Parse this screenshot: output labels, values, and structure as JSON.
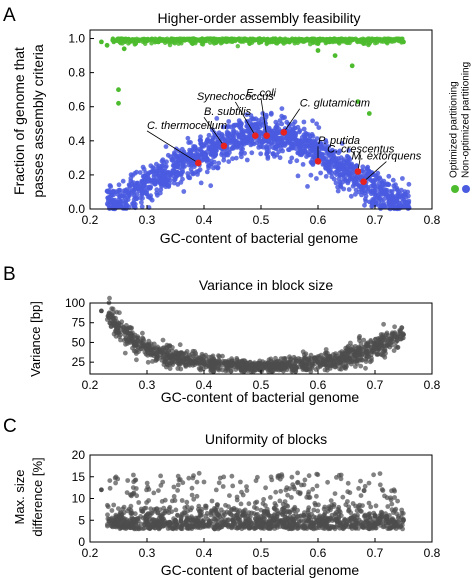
{
  "panels": [
    {
      "letter": "A"
    },
    {
      "letter": "B"
    },
    {
      "letter": "C"
    }
  ],
  "chart_data": [
    {
      "type": "scatter",
      "title": "Higher-order assembly feasibility",
      "xlabel": "GC-content of bacterial genome",
      "ylabel": [
        "Fraction of genome that",
        "passes assembly criteria"
      ],
      "xlim": [
        0.2,
        0.8
      ],
      "ylim": [
        0,
        1.05
      ],
      "xticks": [
        "0.2",
        "0.3",
        "0.4",
        "0.5",
        "0.6",
        "0.7",
        "0.8"
      ],
      "yticks": [
        "0.0",
        "0.2",
        "0.4",
        "0.6",
        "0.8",
        "1.0"
      ],
      "xtick_values": [
        0.2,
        0.3,
        0.4,
        0.5,
        0.6,
        0.7,
        0.8
      ],
      "ytick_values": [
        0,
        0.2,
        0.4,
        0.6,
        0.8,
        1.0
      ],
      "legend": {
        "placement": "right, vertical",
        "entries": [
          {
            "label": "Optimized partitioning",
            "color": "#4dbb2e"
          },
          {
            "label": "Non-optimized partitioning",
            "color": "#4a5be0"
          }
        ]
      },
      "series": [
        {
          "name": "Optimized partitioning",
          "color": "#4dbb2e",
          "description_range": "clustered near 1.0 across GC 0.21-0.75, few outliers down to ~0.55",
          "points": [
            [
              0.22,
              0.98
            ],
            [
              0.23,
              0.96
            ],
            [
              0.24,
              0.99
            ],
            [
              0.25,
              0.62
            ],
            [
              0.26,
              0.94
            ],
            [
              0.28,
              0.97
            ],
            [
              0.3,
              0.99
            ],
            [
              0.32,
              0.98
            ],
            [
              0.35,
              0.99
            ],
            [
              0.38,
              0.97
            ],
            [
              0.4,
              0.99
            ],
            [
              0.42,
              0.98
            ],
            [
              0.45,
              0.99
            ],
            [
              0.48,
              0.97
            ],
            [
              0.5,
              0.98
            ],
            [
              0.52,
              0.99
            ],
            [
              0.55,
              0.98
            ],
            [
              0.58,
              0.99
            ],
            [
              0.6,
              0.97
            ],
            [
              0.62,
              0.98
            ],
            [
              0.63,
              0.9
            ],
            [
              0.65,
              0.99
            ],
            [
              0.66,
              0.84
            ],
            [
              0.67,
              0.63
            ],
            [
              0.68,
              0.97
            ],
            [
              0.7,
              0.99
            ],
            [
              0.72,
              0.98
            ],
            [
              0.74,
              0.99
            ],
            [
              0.75,
              0.98
            ],
            [
              0.25,
              0.7
            ],
            [
              0.6,
              0.93
            ],
            [
              0.69,
              0.56
            ]
          ]
        },
        {
          "name": "Non-optimized partitioning",
          "color": "#4a5be0",
          "description_range": "arch shape: ~0.05 at GC 0.25, peak ~0.45 near GC 0.5, ~0.05 at GC 0.75",
          "points": [
            [
              0.25,
              0.05
            ],
            [
              0.3,
              0.14
            ],
            [
              0.35,
              0.24
            ],
            [
              0.4,
              0.33
            ],
            [
              0.45,
              0.41
            ],
            [
              0.5,
              0.44
            ],
            [
              0.55,
              0.42
            ],
            [
              0.6,
              0.33
            ],
            [
              0.65,
              0.22
            ],
            [
              0.7,
              0.12
            ],
            [
              0.75,
              0.03
            ]
          ]
        }
      ],
      "annotations": [
        {
          "label": "C. thermocellum",
          "x": 0.39,
          "y": 0.27
        },
        {
          "label": "B. subtilis",
          "x": 0.435,
          "y": 0.37
        },
        {
          "label": "Synechococcus",
          "x": 0.49,
          "y": 0.43
        },
        {
          "label": "E. coli",
          "x": 0.51,
          "y": 0.43
        },
        {
          "label": "C. glutamicum",
          "x": 0.54,
          "y": 0.45
        },
        {
          "label": "P. putida",
          "x": 0.6,
          "y": 0.28
        },
        {
          "label": "C. crescentus",
          "x": 0.67,
          "y": 0.22
        },
        {
          "label": "M. extorquens",
          "x": 0.68,
          "y": 0.16
        }
      ],
      "highlight_color": "#e8231f"
    },
    {
      "type": "scatter",
      "title": "Variance in block size",
      "xlabel": "GC-content of bacterial genome",
      "ylabel": [
        "Variance [bp]"
      ],
      "xlim": [
        0.2,
        0.8
      ],
      "ylim": [
        10,
        100
      ],
      "xticks": [
        "0.2",
        "0.3",
        "0.4",
        "0.5",
        "0.6",
        "0.7",
        "0.8"
      ],
      "yticks": [
        "25",
        "50",
        "75",
        "100"
      ],
      "xtick_values": [
        0.2,
        0.3,
        0.4,
        0.5,
        0.6,
        0.7,
        0.8
      ],
      "ytick_values": [
        25,
        50,
        75,
        100
      ],
      "series": [
        {
          "color": "#4d4d4d",
          "description_range": "U-shape: ~90 at GC 0.22, minimum ~20 near GC 0.5, ~60 at GC 0.75",
          "points": [
            [
              0.22,
              90
            ],
            [
              0.25,
              70
            ],
            [
              0.28,
              50
            ],
            [
              0.3,
              40
            ],
            [
              0.35,
              30
            ],
            [
              0.4,
              25
            ],
            [
              0.45,
              21
            ],
            [
              0.5,
              19
            ],
            [
              0.55,
              21
            ],
            [
              0.6,
              25
            ],
            [
              0.65,
              31
            ],
            [
              0.7,
              42
            ],
            [
              0.75,
              60
            ]
          ]
        }
      ]
    },
    {
      "type": "scatter",
      "title": "Uniformity of blocks",
      "xlabel": "GC-content of bacterial genome",
      "ylabel": [
        "Max. size",
        "difference [%]"
      ],
      "xlim": [
        0.2,
        0.8
      ],
      "ylim": [
        0,
        20
      ],
      "xticks": [
        "0.2",
        "0.3",
        "0.4",
        "0.5",
        "0.6",
        "0.7",
        "0.8"
      ],
      "yticks": [
        "0",
        "5",
        "10",
        "15",
        "20"
      ],
      "xtick_values": [
        0.2,
        0.3,
        0.4,
        0.5,
        0.6,
        0.7,
        0.8
      ],
      "ytick_values": [
        0,
        5,
        10,
        15,
        20
      ],
      "series": [
        {
          "color": "#4d4d4d",
          "description_range": "dense band 2-8% across GC 0.22-0.75 with scattered points up to ~17%",
          "points": [
            [
              0.22,
              12
            ],
            [
              0.25,
              5
            ],
            [
              0.3,
              4
            ],
            [
              0.35,
              5
            ],
            [
              0.4,
              4
            ],
            [
              0.45,
              5
            ],
            [
              0.5,
              4
            ],
            [
              0.55,
              4
            ],
            [
              0.6,
              5
            ],
            [
              0.65,
              4
            ],
            [
              0.7,
              6
            ],
            [
              0.75,
              5
            ]
          ]
        }
      ]
    }
  ]
}
